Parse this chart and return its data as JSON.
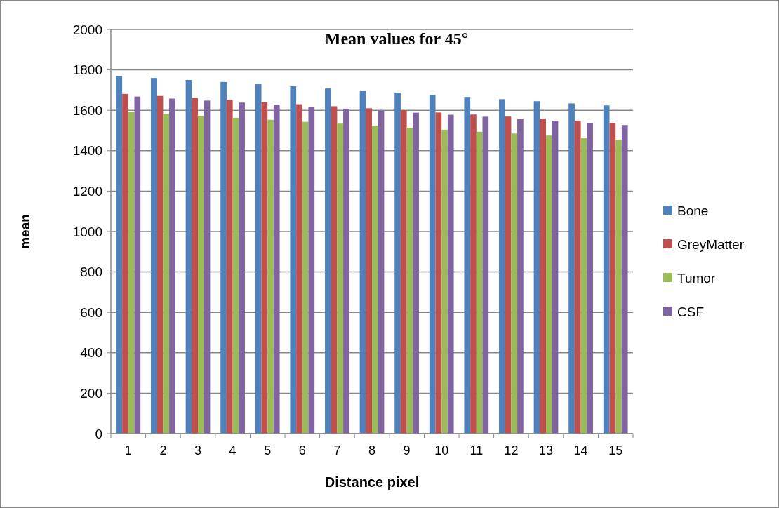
{
  "chart_data": {
    "type": "bar",
    "title": "Mean values for 45°",
    "xlabel": "Distance pixel",
    "ylabel": "mean",
    "categories": [
      "1",
      "2",
      "3",
      "4",
      "5",
      "6",
      "7",
      "8",
      "9",
      "10",
      "11",
      "12",
      "13",
      "14",
      "15"
    ],
    "series": [
      {
        "name": "Bone",
        "color": "#4f81bd",
        "values": [
          1770,
          1760,
          1750,
          1740,
          1729,
          1719,
          1708,
          1697,
          1687,
          1676,
          1666,
          1655,
          1645,
          1634,
          1624
        ]
      },
      {
        "name": "GreyMatter",
        "color": "#c0504d",
        "values": [
          1681,
          1671,
          1661,
          1651,
          1640,
          1630,
          1620,
          1610,
          1600,
          1589,
          1579,
          1569,
          1559,
          1549,
          1538
        ]
      },
      {
        "name": "Tumor",
        "color": "#9bbb59",
        "values": [
          1592,
          1582,
          1573,
          1563,
          1553,
          1543,
          1534,
          1524,
          1514,
          1504,
          1494,
          1485,
          1475,
          1465,
          1455
        ]
      },
      {
        "name": "CSF",
        "color": "#8064a2",
        "values": [
          1668,
          1658,
          1648,
          1638,
          1628,
          1618,
          1608,
          1598,
          1588,
          1578,
          1568,
          1558,
          1548,
          1537,
          1527
        ]
      }
    ],
    "ylim": [
      0,
      2000
    ],
    "yticks": [
      0,
      200,
      400,
      600,
      800,
      1000,
      1200,
      1400,
      1600,
      1800,
      2000
    ],
    "grid": "y",
    "legend": "right"
  }
}
